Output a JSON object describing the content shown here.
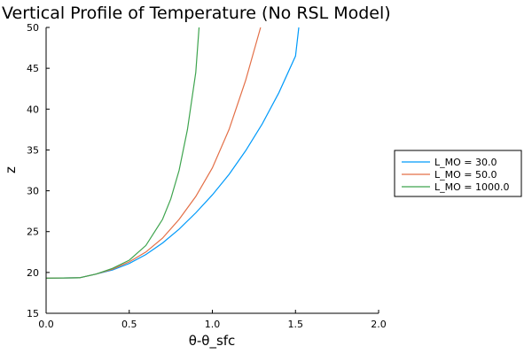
{
  "chart_data": {
    "type": "line",
    "title": "Vertical Profile of Temperature (No RSL Model)",
    "xlabel": "θ-θ_sfc",
    "ylabel": "z",
    "xlim": [
      0,
      2
    ],
    "ylim": [
      15,
      50
    ],
    "xticks": [
      0,
      0.5,
      1,
      1.5,
      2
    ],
    "xtick_labels": [
      "0.0",
      "0.5",
      "1.0",
      "1.5",
      "2.0"
    ],
    "yticks": [
      15,
      20,
      25,
      30,
      35,
      40,
      45,
      50
    ],
    "ytick_labels": [
      "15",
      "20",
      "25",
      "30",
      "35",
      "40",
      "45",
      "50"
    ],
    "grid": false,
    "legend": "outside-right",
    "series": [
      {
        "name": "L_MO = 30.0",
        "color": "#009AFA",
        "x": [
          0.0,
          0.2,
          0.3,
          0.4,
          0.5,
          0.6,
          0.7,
          0.8,
          0.9,
          1.0,
          1.1,
          1.2,
          1.3,
          1.4,
          1.5,
          1.52
        ],
        "y": [
          19.3,
          19.35,
          19.8,
          20.3,
          21.1,
          22.2,
          23.6,
          25.3,
          27.3,
          29.5,
          32.0,
          34.9,
          38.2,
          42.0,
          46.5,
          50.0
        ]
      },
      {
        "name": "L_MO = 50.0",
        "color": "#E36F47",
        "x": [
          0.0,
          0.2,
          0.3,
          0.4,
          0.5,
          0.6,
          0.7,
          0.8,
          0.9,
          1.0,
          1.1,
          1.2,
          1.29
        ],
        "y": [
          19.3,
          19.35,
          19.8,
          20.4,
          21.3,
          22.5,
          24.2,
          26.5,
          29.3,
          32.8,
          37.5,
          43.5,
          50.0
        ]
      },
      {
        "name": "L_MO = 1000.0",
        "color": "#3EA44E",
        "x": [
          0.0,
          0.2,
          0.3,
          0.4,
          0.5,
          0.6,
          0.7,
          0.75,
          0.8,
          0.85,
          0.9,
          0.92
        ],
        "y": [
          19.3,
          19.35,
          19.8,
          20.5,
          21.5,
          23.3,
          26.5,
          29.0,
          32.5,
          37.5,
          44.5,
          50.0
        ]
      }
    ]
  }
}
